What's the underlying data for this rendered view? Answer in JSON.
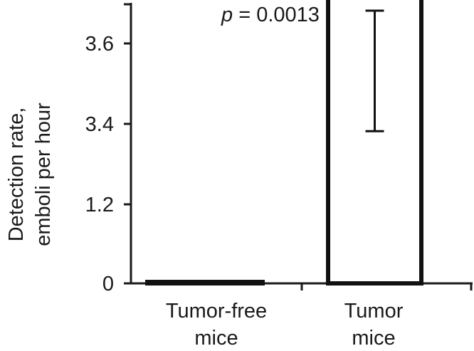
{
  "chart_data": {
    "type": "bar",
    "categories": [
      [
        "Tumor-free",
        "mice"
      ],
      [
        "Tumor",
        "mice"
      ]
    ],
    "values": [
      0,
      3.9
    ],
    "error_upper": [
      0,
      4.7
    ],
    "error_lower": [
      0,
      3.2
    ],
    "ylabel": [
      "Detection rate,",
      "emboli per hour"
    ],
    "y_ticks": [
      "0",
      "1.2",
      "3.4",
      "3.6"
    ],
    "y_tick_values": [
      0,
      1.2,
      3.4,
      3.6
    ],
    "annotation": {
      "p_symbol": "p",
      "p_text": " = 0.0013"
    },
    "bar_fill": "#ffffff",
    "bar_stroke": "#111111",
    "axis_color": "#1a1a1a",
    "grid": false
  }
}
